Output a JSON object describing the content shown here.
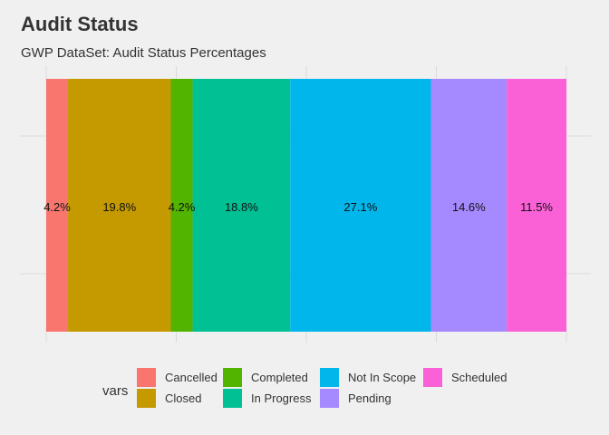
{
  "chart_data": {
    "type": "bar",
    "orientation": "horizontal-stacked",
    "title": "Audit Status",
    "subtitle": "GWP DataSet: Audit Status Percentages",
    "categories": [
      "Cancelled",
      "Closed",
      "Completed",
      "In Progress",
      "Not In Scope",
      "Pending",
      "Scheduled"
    ],
    "values": [
      4.2,
      19.8,
      4.2,
      18.8,
      27.1,
      14.6,
      11.5
    ],
    "labels": [
      "4.2%",
      "19.8%",
      "4.2%",
      "18.8%",
      "27.1%",
      "14.6%",
      "11.5%"
    ],
    "colors": [
      "#F8766D",
      "#C49A00",
      "#53B400",
      "#00C094",
      "#00B6EB",
      "#A58AFF",
      "#FB61D7"
    ],
    "legend_title": "vars",
    "legend_position": "bottom",
    "grid": true,
    "xlim": [
      0,
      100
    ]
  }
}
